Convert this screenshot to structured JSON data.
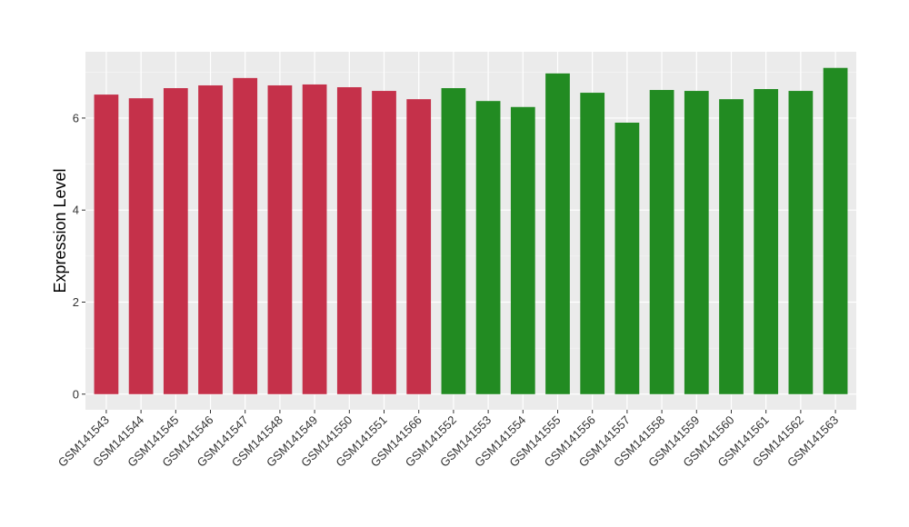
{
  "chart_data": {
    "type": "bar",
    "y_label": "Expression Level",
    "categories": [
      "GSM141543",
      "GSM141544",
      "GSM141545",
      "GSM141546",
      "GSM141547",
      "GSM141548",
      "GSM141549",
      "GSM141550",
      "GSM141551",
      "GSM141566",
      "GSM141552",
      "GSM141553",
      "GSM141554",
      "GSM141555",
      "GSM141556",
      "GSM141557",
      "GSM141558",
      "GSM141559",
      "GSM141560",
      "GSM141561",
      "GSM141562",
      "GSM141563"
    ],
    "values": [
      6.51,
      6.43,
      6.65,
      6.71,
      6.87,
      6.71,
      6.73,
      6.67,
      6.59,
      6.41,
      6.65,
      6.37,
      6.24,
      6.97,
      6.55,
      5.9,
      6.61,
      6.59,
      6.41,
      6.63,
      6.59,
      7.09
    ],
    "colors": [
      "#c5314a",
      "#c5314a",
      "#c5314a",
      "#c5314a",
      "#c5314a",
      "#c5314a",
      "#c5314a",
      "#c5314a",
      "#c5314a",
      "#c5314a",
      "#228b22",
      "#228b22",
      "#228b22",
      "#228b22",
      "#228b22",
      "#228b22",
      "#228b22",
      "#228b22",
      "#228b22",
      "#228b22",
      "#228b22",
      "#228b22"
    ],
    "ylim": [
      -0.34,
      7.44
    ],
    "yticks": [
      0,
      2,
      4,
      6
    ],
    "yminor": [
      1,
      3,
      5,
      7
    ],
    "grid": true
  }
}
